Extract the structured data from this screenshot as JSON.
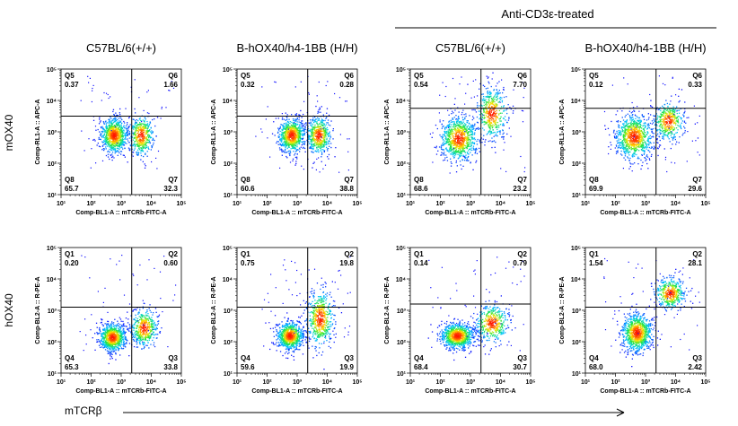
{
  "header": {
    "treatment_label": "Anti-CD3ε-treated"
  },
  "axis_titles": {
    "row_top": "mOX40",
    "row_bottom": "hOX40",
    "x_main": "mTCRβ"
  },
  "colors": {
    "density_low": "#1010ff",
    "density_high": "#ff1000",
    "gate_lines": "#000000"
  },
  "chart_data": [
    {
      "type": "scatter",
      "title": "C57BL/6(+/+)",
      "row": "top",
      "col": 0,
      "xlabel": "Comp-BL1-A :: mTCRb-FITC-A",
      "ylabel": "Comp-RL1-A :: APC-A",
      "x_ticks": [
        "10¹",
        "10²",
        "10³",
        "10⁴",
        "10⁵"
      ],
      "y_ticks": [
        "10¹",
        "10²",
        "10³",
        "10⁴",
        "10⁵"
      ],
      "log_scale": true,
      "xlim": [
        1,
        5
      ],
      "ylim": [
        1,
        5
      ],
      "gate": {
        "x": 3.35,
        "y": 3.5
      },
      "quadrants": [
        {
          "name": "Q5",
          "value": "0.37",
          "pos": "top-left"
        },
        {
          "name": "Q6",
          "value": "1.66",
          "pos": "top-right"
        },
        {
          "name": "Q7",
          "value": "32.3",
          "pos": "bottom-right"
        },
        {
          "name": "Q8",
          "value": "65.7",
          "pos": "bottom-left"
        }
      ],
      "populations": [
        {
          "x": 2.75,
          "y": 2.9,
          "sx": 0.22,
          "sy": 0.28,
          "weight": 0.66
        },
        {
          "x": 3.65,
          "y": 2.9,
          "sx": 0.2,
          "sy": 0.32,
          "weight": 0.34
        }
      ]
    },
    {
      "type": "scatter",
      "title": "B-hOX40/h4-1BB  (H/H)",
      "row": "top",
      "col": 1,
      "xlabel": "Comp-BL1-A :: mTCRb-FITC-A",
      "ylabel": "Comp-RL1-A :: APC-A",
      "x_ticks": [
        "10¹",
        "10²",
        "10³",
        "10⁴",
        "10⁵"
      ],
      "y_ticks": [
        "10¹",
        "10²",
        "10³",
        "10⁴",
        "10⁵"
      ],
      "log_scale": true,
      "xlim": [
        1,
        5
      ],
      "ylim": [
        1,
        5
      ],
      "gate": {
        "x": 3.35,
        "y": 3.5
      },
      "quadrants": [
        {
          "name": "Q5",
          "value": "0.32",
          "pos": "top-left"
        },
        {
          "name": "Q6",
          "value": "0.28",
          "pos": "top-right"
        },
        {
          "name": "Q7",
          "value": "38.8",
          "pos": "bottom-right"
        },
        {
          "name": "Q8",
          "value": "60.6",
          "pos": "bottom-left"
        }
      ],
      "populations": [
        {
          "x": 2.8,
          "y": 2.9,
          "sx": 0.22,
          "sy": 0.27,
          "weight": 0.61
        },
        {
          "x": 3.7,
          "y": 2.9,
          "sx": 0.2,
          "sy": 0.3,
          "weight": 0.39
        }
      ]
    },
    {
      "type": "scatter",
      "title": "C57BL/6(+/+)",
      "row": "top",
      "col": 2,
      "xlabel": "Comp-BL1-A :: mTCRb-FITC-A",
      "ylabel": "Comp-RL1-A :: APC-A",
      "x_ticks": [
        "10¹",
        "10²",
        "10³",
        "10⁴",
        "10⁵"
      ],
      "y_ticks": [
        "10¹",
        "10²",
        "10³",
        "10⁴",
        "10⁵"
      ],
      "log_scale": true,
      "xlim": [
        1,
        5
      ],
      "ylim": [
        1,
        5
      ],
      "gate": {
        "x": 3.35,
        "y": 3.75
      },
      "quadrants": [
        {
          "name": "Q5",
          "value": "0.54",
          "pos": "top-left"
        },
        {
          "name": "Q6",
          "value": "7.70",
          "pos": "top-right"
        },
        {
          "name": "Q7",
          "value": "23.2",
          "pos": "bottom-right"
        },
        {
          "name": "Q8",
          "value": "68.6",
          "pos": "bottom-left"
        }
      ],
      "populations": [
        {
          "x": 2.6,
          "y": 2.8,
          "sx": 0.3,
          "sy": 0.35,
          "weight": 0.66
        },
        {
          "x": 3.7,
          "y": 3.6,
          "sx": 0.25,
          "sy": 0.4,
          "weight": 0.34
        }
      ]
    },
    {
      "type": "scatter",
      "title": "B-hOX40/h4-1BB  (H/H)",
      "row": "top",
      "col": 3,
      "xlabel": "Comp-BL1-A :: mTCRb-FITC-A",
      "ylabel": "Comp-RL1-A :: APC-A",
      "x_ticks": [
        "10¹",
        "10²",
        "10³",
        "10⁴",
        "10⁵"
      ],
      "y_ticks": [
        "10¹",
        "10²",
        "10³",
        "10⁴",
        "10⁵"
      ],
      "log_scale": true,
      "xlim": [
        1,
        5
      ],
      "ylim": [
        1,
        5
      ],
      "gate": {
        "x": 3.35,
        "y": 3.75
      },
      "quadrants": [
        {
          "name": "Q5",
          "value": "0.12",
          "pos": "top-left"
        },
        {
          "name": "Q6",
          "value": "0.33",
          "pos": "top-right"
        },
        {
          "name": "Q7",
          "value": "29.6",
          "pos": "bottom-right"
        },
        {
          "name": "Q8",
          "value": "69.9",
          "pos": "bottom-left"
        }
      ],
      "populations": [
        {
          "x": 2.6,
          "y": 2.85,
          "sx": 0.3,
          "sy": 0.35,
          "weight": 0.68
        },
        {
          "x": 3.75,
          "y": 3.35,
          "sx": 0.25,
          "sy": 0.3,
          "weight": 0.32
        }
      ]
    },
    {
      "type": "scatter",
      "title": "",
      "row": "bottom",
      "col": 0,
      "xlabel": "Comp-BL1-A :: mTCRb-FITC-A",
      "ylabel": "Comp-BL2-A :: R-PE-A",
      "x_ticks": [
        "10¹",
        "10²",
        "10³",
        "10⁴",
        "10⁵"
      ],
      "y_ticks": [
        "10¹",
        "10²",
        "10³",
        "10⁴",
        "10⁵"
      ],
      "log_scale": true,
      "xlim": [
        1,
        5
      ],
      "ylim": [
        1,
        5
      ],
      "gate": {
        "x": 3.35,
        "y": 3.1
      },
      "quadrants": [
        {
          "name": "Q1",
          "value": "0.20",
          "pos": "top-left"
        },
        {
          "name": "Q2",
          "value": "0.60",
          "pos": "top-right"
        },
        {
          "name": "Q3",
          "value": "33.8",
          "pos": "bottom-right"
        },
        {
          "name": "Q4",
          "value": "65.3",
          "pos": "bottom-left"
        }
      ],
      "populations": [
        {
          "x": 2.7,
          "y": 2.15,
          "sx": 0.22,
          "sy": 0.22,
          "weight": 0.65
        },
        {
          "x": 3.75,
          "y": 2.45,
          "sx": 0.22,
          "sy": 0.3,
          "weight": 0.35
        }
      ]
    },
    {
      "type": "scatter",
      "title": "",
      "row": "bottom",
      "col": 1,
      "xlabel": "Comp-BL1-A :: mTCRb-FITC-A",
      "ylabel": "Comp-BL2-A :: R-PE-A",
      "x_ticks": [
        "10¹",
        "10²",
        "10³",
        "10⁴",
        "10⁵"
      ],
      "y_ticks": [
        "10¹",
        "10²",
        "10³",
        "10⁴",
        "10⁵"
      ],
      "log_scale": true,
      "xlim": [
        1,
        5
      ],
      "ylim": [
        1,
        5
      ],
      "gate": {
        "x": 3.35,
        "y": 3.1
      },
      "quadrants": [
        {
          "name": "Q1",
          "value": "0.75",
          "pos": "top-left"
        },
        {
          "name": "Q2",
          "value": "19.8",
          "pos": "top-right"
        },
        {
          "name": "Q3",
          "value": "19.9",
          "pos": "bottom-right"
        },
        {
          "name": "Q4",
          "value": "59.6",
          "pos": "bottom-left"
        }
      ],
      "populations": [
        {
          "x": 2.75,
          "y": 2.2,
          "sx": 0.22,
          "sy": 0.22,
          "weight": 0.6
        },
        {
          "x": 3.75,
          "y": 2.75,
          "sx": 0.22,
          "sy": 0.45,
          "weight": 0.4
        }
      ]
    },
    {
      "type": "scatter",
      "title": "",
      "row": "bottom",
      "col": 2,
      "xlabel": "Comp-BL1-A :: mTCRb-FITC-A",
      "ylabel": "Comp-BL2-A :: R-PE-A",
      "x_ticks": [
        "10¹",
        "10²",
        "10³",
        "10⁴",
        "10⁵"
      ],
      "y_ticks": [
        "10¹",
        "10²",
        "10³",
        "10⁴",
        "10⁵"
      ],
      "log_scale": true,
      "xlim": [
        1,
        5
      ],
      "ylim": [
        1,
        5
      ],
      "gate": {
        "x": 3.35,
        "y": 3.2
      },
      "quadrants": [
        {
          "name": "Q1",
          "value": "0.14",
          "pos": "top-left"
        },
        {
          "name": "Q2",
          "value": "0.79",
          "pos": "top-right"
        },
        {
          "name": "Q3",
          "value": "30.7",
          "pos": "bottom-right"
        },
        {
          "name": "Q4",
          "value": "68.4",
          "pos": "bottom-left"
        }
      ],
      "populations": [
        {
          "x": 2.55,
          "y": 2.2,
          "sx": 0.28,
          "sy": 0.2,
          "weight": 0.68
        },
        {
          "x": 3.7,
          "y": 2.6,
          "sx": 0.28,
          "sy": 0.3,
          "weight": 0.32
        }
      ]
    },
    {
      "type": "scatter",
      "title": "",
      "row": "bottom",
      "col": 3,
      "xlabel": "Comp-BL1-A :: mTCRb-FITC-A",
      "ylabel": "Comp-BL2-A :: R-PE-A",
      "x_ticks": [
        "10¹",
        "10²",
        "10³",
        "10⁴",
        "10⁵"
      ],
      "y_ticks": [
        "10¹",
        "10²",
        "10³",
        "10⁴",
        "10⁵"
      ],
      "log_scale": true,
      "xlim": [
        1,
        5
      ],
      "ylim": [
        1,
        5
      ],
      "gate": {
        "x": 3.35,
        "y": 3.1
      },
      "quadrants": [
        {
          "name": "Q1",
          "value": "1.54",
          "pos": "top-left"
        },
        {
          "name": "Q2",
          "value": "28.1",
          "pos": "top-right"
        },
        {
          "name": "Q3",
          "value": "2.42",
          "pos": "bottom-right"
        },
        {
          "name": "Q4",
          "value": "68.0",
          "pos": "bottom-left"
        }
      ],
      "populations": [
        {
          "x": 2.7,
          "y": 2.3,
          "sx": 0.25,
          "sy": 0.3,
          "weight": 0.68
        },
        {
          "x": 3.8,
          "y": 3.55,
          "sx": 0.25,
          "sy": 0.25,
          "weight": 0.32
        }
      ]
    }
  ]
}
